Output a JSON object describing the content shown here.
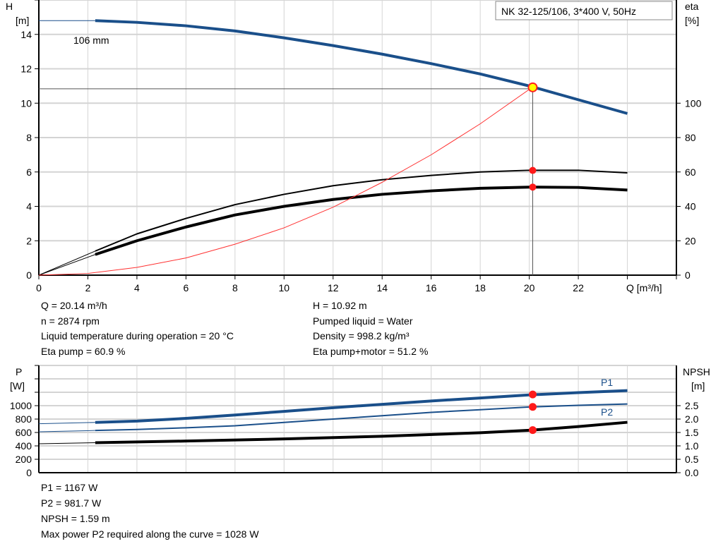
{
  "chart_data": [
    {
      "type": "line",
      "title_box": "NK 32-125/106, 3*400 V, 50Hz",
      "xlabel": "Q [m³/h]",
      "xlim": [
        0,
        26
      ],
      "xticks": [
        0,
        2,
        4,
        6,
        8,
        10,
        12,
        14,
        16,
        18,
        20,
        22
      ],
      "ylabel_left": [
        "H",
        "[m]"
      ],
      "ylim_left": [
        0,
        16
      ],
      "yticks_left": [
        0,
        2,
        4,
        6,
        8,
        10,
        12,
        14
      ],
      "ylabel_right": [
        "eta",
        "[%]"
      ],
      "ylim_right": [
        0,
        160
      ],
      "yticks_right": [
        0,
        20,
        40,
        60,
        80,
        100
      ],
      "grid": true,
      "curve_label": "106 mm",
      "series": [
        {
          "key": "head",
          "axis": "left",
          "color": "#1a4f8a",
          "x": [
            0,
            2.3,
            4,
            6,
            8,
            10,
            12,
            14,
            16,
            18,
            20,
            22,
            24
          ],
          "y": [
            14.8,
            14.8,
            14.7,
            14.5,
            14.2,
            13.8,
            13.35,
            12.85,
            12.3,
            11.7,
            11.0,
            10.2,
            9.4
          ]
        },
        {
          "key": "eta_pump",
          "axis": "right",
          "color": "#000000",
          "x": [
            0,
            2.3,
            4,
            6,
            8,
            10,
            12,
            14,
            16,
            18,
            20,
            22,
            24
          ],
          "y": [
            0,
            14,
            24,
            33,
            41,
            47,
            52,
            55.5,
            58,
            60,
            61,
            61,
            59.5
          ]
        },
        {
          "key": "eta_pump_motor",
          "axis": "right",
          "color": "#000000",
          "x": [
            0,
            2.3,
            4,
            6,
            8,
            10,
            12,
            14,
            16,
            18,
            20,
            22,
            24
          ],
          "y": [
            0,
            12,
            20,
            28,
            35,
            40,
            44,
            47,
            49,
            50.5,
            51.2,
            51,
            49.5
          ]
        },
        {
          "key": "system",
          "axis": "left",
          "color": "#ff3030",
          "x": [
            0,
            2,
            4,
            6,
            8,
            10,
            12,
            14,
            16,
            18,
            20,
            20.14
          ],
          "y": [
            0,
            0.1,
            0.45,
            1.0,
            1.8,
            2.75,
            3.95,
            5.4,
            7.0,
            8.8,
            10.8,
            10.92
          ]
        }
      ],
      "operating_point": {
        "Q": 20.14,
        "H": 10.92,
        "eta_pump": 60.9,
        "eta_pump_motor": 51.2
      }
    },
    {
      "type": "line",
      "xlim": [
        0,
        26
      ],
      "ylabel_left": [
        "P",
        "[W]"
      ],
      "ylim_left": [
        0,
        1600
      ],
      "yticks_left": [
        0,
        200,
        400,
        600,
        800,
        1000
      ],
      "ylabel_right": [
        "NPSH",
        "[m]"
      ],
      "ylim_right": [
        0,
        4
      ],
      "yticks_right": [
        "0.0",
        "0.5",
        "1.0",
        "1.5",
        "2.0",
        "2.5"
      ],
      "grid": true,
      "series": [
        {
          "name": "P1",
          "axis": "left",
          "color": "#1a4f8a",
          "x": [
            0,
            2.3,
            4,
            6,
            8,
            10,
            12,
            14,
            16,
            18,
            20,
            22,
            24
          ],
          "y": [
            730,
            750,
            770,
            810,
            860,
            915,
            970,
            1020,
            1070,
            1115,
            1160,
            1195,
            1225
          ]
        },
        {
          "name": "P2",
          "axis": "left",
          "color": "#1a4f8a",
          "x": [
            0,
            2.3,
            4,
            6,
            8,
            10,
            12,
            14,
            16,
            18,
            20,
            22,
            24
          ],
          "y": [
            610,
            630,
            645,
            670,
            700,
            750,
            800,
            850,
            900,
            940,
            980,
            1005,
            1025
          ]
        },
        {
          "key": "npsh",
          "axis": "right",
          "color": "#000000",
          "x": [
            0,
            2.3,
            6,
            10,
            14,
            18,
            20.14,
            22,
            24
          ],
          "y": [
            1.08,
            1.12,
            1.18,
            1.26,
            1.36,
            1.49,
            1.59,
            1.72,
            1.88
          ]
        }
      ],
      "operating_point": {
        "Q": 20.14,
        "P1": 1167,
        "P2": 981.7,
        "NPSH": 1.59
      }
    }
  ],
  "info_top": {
    "left": [
      "Q = 20.14 m³/h",
      "n = 2874 rpm",
      "Liquid temperature during operation = 20 °C",
      "Eta pump = 60.9 %"
    ],
    "right": [
      "H = 10.92 m",
      "Pumped liquid = Water",
      "Density = 998.2 kg/m³",
      "Eta pump+motor = 51.2 %"
    ]
  },
  "info_bottom": [
    "P1 = 1167 W",
    "P2 = 981.7 W",
    "NPSH = 1.59 m",
    "Max power P2 required along the curve = 1028 W"
  ]
}
